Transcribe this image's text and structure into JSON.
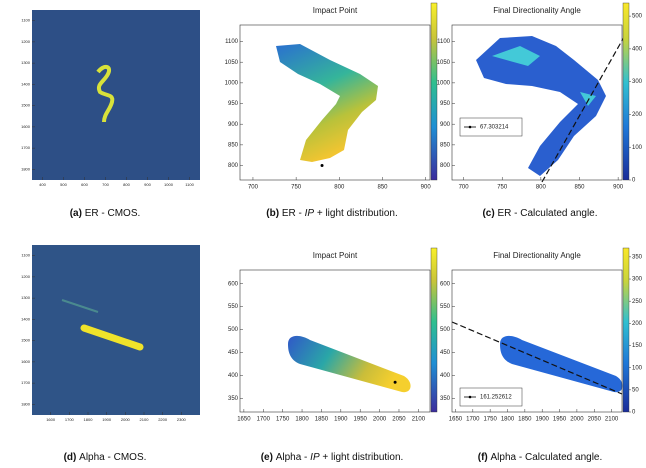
{
  "panels": [
    {
      "label": "(a)",
      "caption": {
        "pre": "ER - CMOS."
      },
      "xlim": [
        350,
        1150
      ],
      "ylim": [
        1050,
        1850
      ],
      "y_inverted": true,
      "xticks": [
        400,
        500,
        600,
        700,
        800,
        900,
        1000,
        1100
      ],
      "yticks": [
        1100,
        1200,
        1300,
        1400,
        1500,
        1600,
        1700,
        1800
      ]
    },
    {
      "label": "(b)",
      "caption": {
        "pre": "ER - ",
        "em": "IP",
        "post": " + light distribution."
      },
      "title": "Impact Point",
      "xlim": [
        685,
        905
      ],
      "ylim": [
        765,
        1140
      ],
      "xticks": [
        700,
        750,
        800,
        850,
        900
      ],
      "yticks": [
        800,
        850,
        900,
        950,
        1000,
        1050,
        1100
      ],
      "point": [
        780,
        800
      ]
    },
    {
      "label": "(c)",
      "caption": {
        "pre": "ER - Calculated angle."
      },
      "title": "Final Directionality Angle",
      "xlim": [
        685,
        905
      ],
      "ylim": [
        765,
        1140
      ],
      "xticks": [
        700,
        750,
        800,
        850,
        900
      ],
      "yticks": [
        800,
        850,
        900,
        950,
        1000,
        1050,
        1100
      ],
      "cbar_lim": [
        0,
        540
      ],
      "cbar_ticks": [
        0,
        100,
        200,
        300,
        400,
        500
      ],
      "legend": "67.303214"
    },
    {
      "label": "(d)",
      "caption": {
        "pre": "Alpha - CMOS."
      },
      "xlim": [
        1500,
        2400
      ],
      "ylim": [
        1050,
        1850
      ],
      "y_inverted": true,
      "xticks": [
        1600,
        1700,
        1800,
        1900,
        2000,
        2100,
        2200,
        2300
      ],
      "yticks": [
        1100,
        1200,
        1300,
        1400,
        1500,
        1600,
        1700,
        1800
      ]
    },
    {
      "label": "(e)",
      "caption": {
        "pre": "Alpha - ",
        "em": "IP",
        "post": " + light distribution."
      },
      "title": "Impact Point",
      "xlim": [
        1640,
        2130
      ],
      "ylim": [
        320,
        630
      ],
      "xticks": [
        1650,
        1700,
        1750,
        1800,
        1850,
        1900,
        1950,
        2000,
        2050,
        2100
      ],
      "yticks": [
        350,
        400,
        450,
        500,
        550,
        600
      ],
      "point": [
        2040,
        385
      ]
    },
    {
      "label": "(f)",
      "caption": {
        "pre": "Alpha - Calculated angle."
      },
      "title": "Final Directionality Angle",
      "xlim": [
        1640,
        2130
      ],
      "ylim": [
        320,
        630
      ],
      "xticks": [
        1650,
        1700,
        1750,
        1800,
        1850,
        1900,
        1950,
        2000,
        2050,
        2100
      ],
      "yticks": [
        350,
        400,
        450,
        500,
        550,
        600
      ],
      "cbar_lim": [
        0,
        370
      ],
      "cbar_ticks": [
        0,
        50,
        100,
        150,
        200,
        250,
        300,
        350
      ],
      "legend": "161.252612"
    }
  ]
}
